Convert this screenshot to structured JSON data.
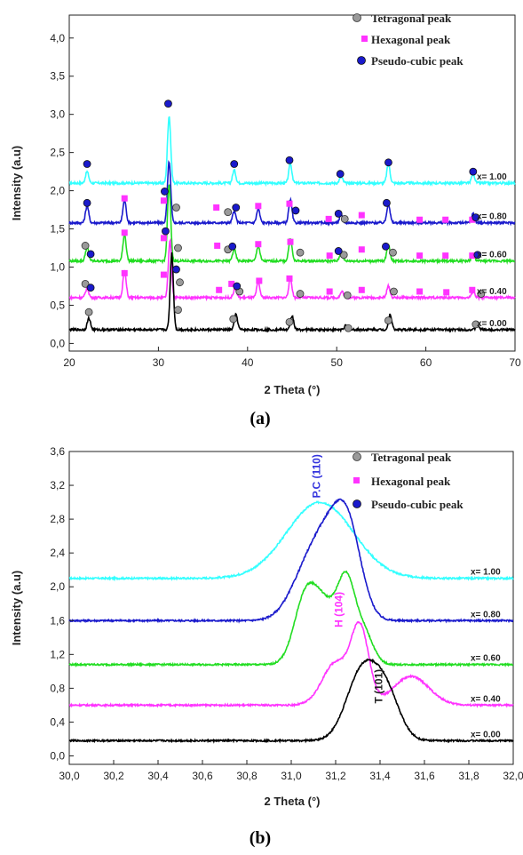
{
  "colors": {
    "x_1.00": "#33ffff",
    "x_0.80": "#1a1acc",
    "x_0.60": "#22dd22",
    "x_0.40": "#ff33ff",
    "x_0.00": "#000000",
    "tetragonal_marker": "#9a9a9a",
    "hexagonal_marker": "#ff33ff",
    "pseudo_cubic_marker": "#1a1acc",
    "pc_annotation": "#3333dd",
    "h_annotation": "#ff33ff",
    "t_annotation": "#222222"
  },
  "captions": {
    "a": "(a)",
    "b": "(b)"
  },
  "chart_data": [
    {
      "type": "line",
      "panel": "a",
      "xlabel": "2 Theta (°)",
      "ylabel": "Intensity (a.u)",
      "xlim": [
        20,
        70
      ],
      "ylim": [
        -0.1,
        4.3
      ],
      "xticks": [
        "20",
        "30",
        "40",
        "50",
        "60",
        "70"
      ],
      "yticks": [
        "0,0",
        "0,5",
        "1,0",
        "1,5",
        "2,0",
        "2,5",
        "3,0",
        "3,5",
        "4,0"
      ],
      "legend": [
        "Tetragonal peak",
        "Hexagonal peak",
        "Pseudo-cubic peak"
      ],
      "legend_position": "top-right",
      "series": [
        {
          "name": "x= 1.00",
          "baseline": 2.1,
          "peaks": [
            [
              22,
              0.15
            ],
            [
              31.2,
              0.88
            ],
            [
              38.5,
              0.17
            ],
            [
              44.8,
              0.25
            ],
            [
              50.5,
              0.08
            ],
            [
              55.8,
              0.25
            ],
            [
              65.3,
              0.12
            ]
          ]
        },
        {
          "name": "x= 0.80",
          "baseline": 1.58,
          "peaks": [
            [
              22,
              0.22
            ],
            [
              26.2,
              0.3
            ],
            [
              31.2,
              0.8
            ],
            [
              38.5,
              0.15
            ],
            [
              41.2,
              0.18
            ],
            [
              44.8,
              0.3
            ],
            [
              50.5,
              0.1
            ],
            [
              55.8,
              0.25
            ],
            [
              65.3,
              0.12
            ]
          ]
        },
        {
          "name": "x= 0.60",
          "baseline": 1.08,
          "peaks": [
            [
              22,
              0.18
            ],
            [
              26.2,
              0.35
            ],
            [
              31.2,
              1.0
            ],
            [
              38.5,
              0.15
            ],
            [
              41.2,
              0.2
            ],
            [
              44.8,
              0.3
            ],
            [
              50.5,
              0.1
            ],
            [
              55.8,
              0.22
            ],
            [
              65.3,
              0.1
            ]
          ]
        },
        {
          "name": "x= 0.40",
          "baseline": 0.6,
          "peaks": [
            [
              22,
              0.12
            ],
            [
              26.2,
              0.35
            ],
            [
              31.3,
              0.75
            ],
            [
              38.6,
              0.12
            ],
            [
              41.2,
              0.2
            ],
            [
              44.8,
              0.25
            ],
            [
              50.6,
              0.08
            ],
            [
              55.8,
              0.15
            ],
            [
              65.3,
              0.08
            ]
          ]
        },
        {
          "name": "x= 0.00",
          "baseline": 0.18,
          "peaks": [
            [
              22.2,
              0.15
            ],
            [
              31.5,
              1.0
            ],
            [
              38.7,
              0.2
            ],
            [
              45.0,
              0.18
            ],
            [
              51.0,
              0.05
            ],
            [
              56.0,
              0.2
            ],
            [
              65.8,
              0.06
            ]
          ]
        }
      ],
      "markers": {
        "pseudo_cubic": [
          [
            22,
            2.35
          ],
          [
            31.1,
            3.14
          ],
          [
            38.5,
            2.35
          ],
          [
            44.7,
            2.4
          ],
          [
            50.4,
            2.22
          ],
          [
            55.8,
            2.37
          ],
          [
            65.3,
            2.25
          ],
          [
            22,
            1.84
          ],
          [
            30.7,
            1.99
          ],
          [
            38.7,
            1.78
          ],
          [
            45.4,
            1.74
          ],
          [
            50.2,
            1.7
          ],
          [
            55.6,
            1.84
          ],
          [
            65.6,
            1.65
          ],
          [
            30.8,
            1.47
          ],
          [
            38.3,
            1.27
          ],
          [
            50.2,
            1.21
          ],
          [
            55.5,
            1.27
          ],
          [
            65.8,
            1.16
          ],
          [
            22.4,
            1.17
          ],
          [
            32,
            0.97
          ],
          [
            38.8,
            0.75
          ],
          [
            22.4,
            0.73
          ]
        ],
        "hexagonal": [
          [
            26.2,
            1.9
          ],
          [
            30.6,
            1.87
          ],
          [
            36.5,
            1.78
          ],
          [
            41.2,
            1.8
          ],
          [
            44.7,
            1.83
          ],
          [
            49.1,
            1.63
          ],
          [
            52.8,
            1.68
          ],
          [
            59.3,
            1.62
          ],
          [
            62.2,
            1.62
          ],
          [
            65.2,
            1.62
          ],
          [
            26.2,
            1.45
          ],
          [
            30.6,
            1.38
          ],
          [
            36.6,
            1.28
          ],
          [
            41.2,
            1.3
          ],
          [
            44.8,
            1.33
          ],
          [
            49.2,
            1.15
          ],
          [
            52.8,
            1.23
          ],
          [
            59.3,
            1.15
          ],
          [
            62.2,
            1.15
          ],
          [
            65.2,
            1.15
          ],
          [
            26.2,
            0.92
          ],
          [
            30.6,
            0.9
          ],
          [
            36.8,
            0.7
          ],
          [
            38.2,
            0.78
          ],
          [
            41.3,
            0.82
          ],
          [
            44.7,
            0.85
          ],
          [
            49.2,
            0.68
          ],
          [
            52.8,
            0.7
          ],
          [
            59.3,
            0.68
          ],
          [
            62.3,
            0.67
          ],
          [
            65.2,
            0.7
          ]
        ],
        "tetragonal": [
          [
            32,
            1.78
          ],
          [
            37.8,
            1.72
          ],
          [
            50.9,
            1.63
          ],
          [
            21.8,
            1.28
          ],
          [
            32.2,
            1.25
          ],
          [
            37.8,
            1.23
          ],
          [
            45.9,
            1.19
          ],
          [
            50.8,
            1.16
          ],
          [
            56.3,
            1.19
          ],
          [
            21.8,
            0.78
          ],
          [
            32.4,
            0.8
          ],
          [
            39.1,
            0.68
          ],
          [
            45.9,
            0.65
          ],
          [
            51.2,
            0.63
          ],
          [
            56.4,
            0.68
          ],
          [
            66.2,
            0.65
          ],
          [
            22.2,
            0.41
          ],
          [
            32.2,
            0.44
          ],
          [
            38.4,
            0.32
          ],
          [
            44.7,
            0.28
          ],
          [
            51.3,
            0.2
          ],
          [
            55.8,
            0.3
          ],
          [
            65.6,
            0.25
          ]
        ]
      }
    },
    {
      "type": "line",
      "panel": "b",
      "xlabel": "2 Theta (°)",
      "ylabel": "Intensity (a.u)",
      "xlim": [
        30.0,
        32.0
      ],
      "ylim": [
        -0.1,
        3.6
      ],
      "xticks": [
        "30,0",
        "30,2",
        "30,4",
        "30,6",
        "30,8",
        "31,0",
        "31,2",
        "31,4",
        "31,6",
        "31,8",
        "32,0"
      ],
      "yticks": [
        "0,0",
        "0,4",
        "0,8",
        "1,2",
        "1,6",
        "2,0",
        "2,4",
        "2,8",
        "3,2",
        "3,6"
      ],
      "legend": [
        "Tetragonal peak",
        "Hexagonal peak",
        "Pseudo-cubic peak"
      ],
      "legend_position": "top-right",
      "annotations": [
        {
          "text": "P.C (110)",
          "x": 31.13,
          "y": 3.05,
          "color_key": "pc_annotation"
        },
        {
          "text": "H (104)",
          "x": 31.23,
          "y": 1.52,
          "color_key": "h_annotation"
        },
        {
          "text": "T (101)",
          "x": 31.41,
          "y": 0.62,
          "color_key": "t_annotation"
        }
      ],
      "series": [
        {
          "name": "x= 1.00",
          "baseline": 2.1,
          "peaks": [
            [
              31.13,
              0.9,
              0.15
            ]
          ]
        },
        {
          "name": "x= 0.80",
          "baseline": 1.6,
          "peaks": [
            [
              31.08,
              0.6,
              0.08
            ],
            [
              31.18,
              0.7,
              0.07
            ],
            [
              31.26,
              0.88,
              0.06
            ]
          ]
        },
        {
          "name": "x= 0.60",
          "baseline": 1.08,
          "peaks": [
            [
              31.06,
              0.68,
              0.05
            ],
            [
              31.15,
              0.66,
              0.06
            ],
            [
              31.25,
              0.88,
              0.04
            ],
            [
              31.33,
              0.35,
              0.04
            ]
          ]
        },
        {
          "name": "x= 0.40",
          "baseline": 0.6,
          "peaks": [
            [
              31.2,
              0.5,
              0.06
            ],
            [
              31.31,
              0.88,
              0.04
            ],
            [
              31.54,
              0.34,
              0.08
            ]
          ]
        },
        {
          "name": "x= 0.00",
          "baseline": 0.18,
          "peaks": [
            [
              31.32,
              0.82,
              0.07
            ],
            [
              31.43,
              0.5,
              0.06
            ]
          ]
        }
      ]
    }
  ]
}
